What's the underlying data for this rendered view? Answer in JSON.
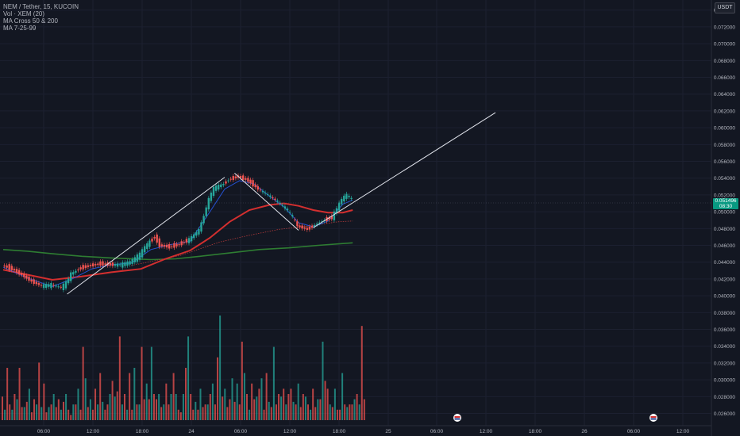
{
  "legend": {
    "symbol": "NEM / Tether, 15, KUCOIN",
    "volume": "Vol · XEM (20)",
    "ma_cross": "MA Cross 50 & 200",
    "ma": "MA 7-25-99"
  },
  "currency_label": "USDT",
  "last_price": {
    "value": "0.051496",
    "countdown": "08:30"
  },
  "colors": {
    "background": "#131722",
    "up": "#26a69a",
    "down": "#ef5350",
    "ma_fast": "#2962ff",
    "ma_mid": "#d32f2f",
    "ma_long": "#2e7d32",
    "trendline": "#e0e3eb",
    "last_price_bg": "#089981"
  },
  "chart_data": {
    "type": "candlestick",
    "y_axis": {
      "ticks": [
        "0.074000",
        "0.072000",
        "0.070000",
        "0.068000",
        "0.066000",
        "0.064000",
        "0.062000",
        "0.060000",
        "0.058000",
        "0.056000",
        "0.054000",
        "0.052000",
        "0.050000",
        "0.048000",
        "0.046000",
        "0.044000",
        "0.042000",
        "0.040000",
        "0.038000",
        "0.036000",
        "0.034000",
        "0.032000",
        "0.030000",
        "0.028000",
        "0.026000"
      ],
      "range": [
        0.0252,
        0.0752
      ]
    },
    "x_axis": {
      "ticks": [
        "06:00",
        "12:00",
        "18:00",
        "24",
        "06:00",
        "12:00",
        "18:00",
        "25",
        "06:00",
        "12:00",
        "18:00",
        "26",
        "06:00",
        "12:00"
      ]
    },
    "price_path": [
      [
        0,
        0.0436
      ],
      [
        2,
        0.0432
      ],
      [
        4,
        0.0425
      ],
      [
        6,
        0.0417
      ],
      [
        8,
        0.0412
      ],
      [
        10,
        0.0413
      ],
      [
        12,
        0.041
      ],
      [
        13,
        0.0415
      ],
      [
        14,
        0.0426
      ],
      [
        16,
        0.0433
      ],
      [
        18,
        0.0436
      ],
      [
        20,
        0.0438
      ],
      [
        22,
        0.0437
      ],
      [
        24,
        0.0437
      ],
      [
        26,
        0.044
      ],
      [
        28,
        0.0449
      ],
      [
        29,
        0.0458
      ],
      [
        31,
        0.047
      ],
      [
        32,
        0.046
      ],
      [
        34,
        0.0458
      ],
      [
        36,
        0.0461
      ],
      [
        38,
        0.0467
      ],
      [
        40,
        0.0478
      ],
      [
        41,
        0.0495
      ],
      [
        42,
        0.0515
      ],
      [
        43,
        0.0528
      ],
      [
        45,
        0.0533
      ],
      [
        46,
        0.0538
      ],
      [
        48,
        0.0542
      ],
      [
        50,
        0.0537
      ],
      [
        52,
        0.0527
      ],
      [
        54,
        0.052
      ],
      [
        56,
        0.0512
      ],
      [
        58,
        0.0502
      ],
      [
        59,
        0.0494
      ],
      [
        60,
        0.0483
      ],
      [
        62,
        0.0479
      ],
      [
        64,
        0.0486
      ],
      [
        65,
        0.0489
      ],
      [
        67,
        0.0493
      ],
      [
        68,
        0.0504
      ],
      [
        69,
        0.0515
      ],
      [
        70,
        0.052
      ],
      [
        71,
        0.0515
      ]
    ],
    "volume": [
      9,
      4,
      20,
      6,
      4,
      10,
      8,
      20,
      5,
      5,
      7,
      12,
      3,
      8,
      6,
      22,
      5,
      14,
      3,
      5,
      6,
      10,
      5,
      8,
      4,
      7,
      10,
      4,
      2,
      6,
      6,
      12,
      4,
      28,
      16,
      5,
      8,
      4,
      12,
      6,
      18,
      7,
      4,
      6,
      10,
      15,
      9,
      11,
      32,
      6,
      10,
      4,
      18,
      4,
      20,
      6,
      6,
      28,
      8,
      14,
      8,
      28,
      10,
      8,
      10,
      5,
      6,
      14,
      6,
      10,
      18,
      10,
      4,
      3,
      10,
      20,
      32,
      10,
      4,
      7,
      4,
      12,
      5,
      6,
      6,
      10,
      14,
      6,
      24,
      40,
      9,
      12,
      5,
      8,
      16,
      7,
      14,
      6,
      30,
      18,
      10,
      4,
      14,
      8,
      9,
      12,
      16,
      4,
      18,
      7,
      5,
      28,
      6,
      10,
      9,
      12,
      6,
      10,
      12,
      7,
      6,
      14,
      5,
      10,
      9,
      6,
      4,
      12,
      5,
      8,
      8,
      30,
      15,
      12,
      6,
      5,
      12,
      4,
      4,
      18,
      6,
      5,
      6,
      6,
      8,
      10,
      6,
      36,
      8
    ],
    "ma_fast": [
      [
        0,
        0.0434
      ],
      [
        5,
        0.0421
      ],
      [
        10,
        0.0411
      ],
      [
        14,
        0.042
      ],
      [
        18,
        0.0432
      ],
      [
        22,
        0.0437
      ],
      [
        26,
        0.0439
      ],
      [
        30,
        0.0455
      ],
      [
        34,
        0.0461
      ],
      [
        38,
        0.0465
      ],
      [
        42,
        0.05
      ],
      [
        45,
        0.0527
      ],
      [
        48,
        0.0537
      ],
      [
        51,
        0.0533
      ],
      [
        54,
        0.0519
      ],
      [
        57,
        0.0506
      ],
      [
        60,
        0.0487
      ],
      [
        63,
        0.0482
      ],
      [
        66,
        0.0489
      ],
      [
        69,
        0.0509
      ],
      [
        71,
        0.0514
      ]
    ],
    "ma_mid": [
      [
        0,
        0.0431
      ],
      [
        5,
        0.0425
      ],
      [
        10,
        0.0419
      ],
      [
        16,
        0.0423
      ],
      [
        22,
        0.0428
      ],
      [
        28,
        0.0432
      ],
      [
        33,
        0.0444
      ],
      [
        38,
        0.0454
      ],
      [
        42,
        0.0469
      ],
      [
        46,
        0.0488
      ],
      [
        50,
        0.0502
      ],
      [
        54,
        0.0508
      ],
      [
        57,
        0.051
      ],
      [
        60,
        0.0507
      ],
      [
        63,
        0.0502
      ],
      [
        66,
        0.0499
      ],
      [
        69,
        0.0499
      ],
      [
        71,
        0.0502
      ]
    ],
    "ma_long": [
      [
        0,
        0.0455
      ],
      [
        5,
        0.0453
      ],
      [
        10,
        0.045
      ],
      [
        16,
        0.0447
      ],
      [
        22,
        0.0445
      ],
      [
        30,
        0.0443
      ],
      [
        35,
        0.0444
      ],
      [
        40,
        0.0447
      ],
      [
        46,
        0.0451
      ],
      [
        52,
        0.0455
      ],
      [
        58,
        0.0457
      ],
      [
        64,
        0.046
      ],
      [
        71,
        0.0463
      ]
    ],
    "ma_slow_dotted": [
      [
        26,
        0.0436
      ],
      [
        36,
        0.0448
      ],
      [
        44,
        0.0464
      ],
      [
        50,
        0.0472
      ],
      [
        56,
        0.0479
      ],
      [
        62,
        0.0483
      ],
      [
        68,
        0.0488
      ],
      [
        71,
        0.0489
      ]
    ],
    "trendlines": [
      [
        [
          13,
          0.0402
        ],
        [
          45,
          0.0541
        ]
      ],
      [
        [
          47,
          0.0546
        ],
        [
          60,
          0.0478
        ]
      ],
      [
        [
          63,
          0.0481
        ],
        [
          100,
          0.0618
        ]
      ]
    ],
    "annotations": [
      {
        "kind": "event-flag",
        "x_label": "25 ~ 09:00"
      },
      {
        "kind": "event-flag",
        "x_label": "26 ~ 07:00"
      }
    ],
    "grid": true
  }
}
